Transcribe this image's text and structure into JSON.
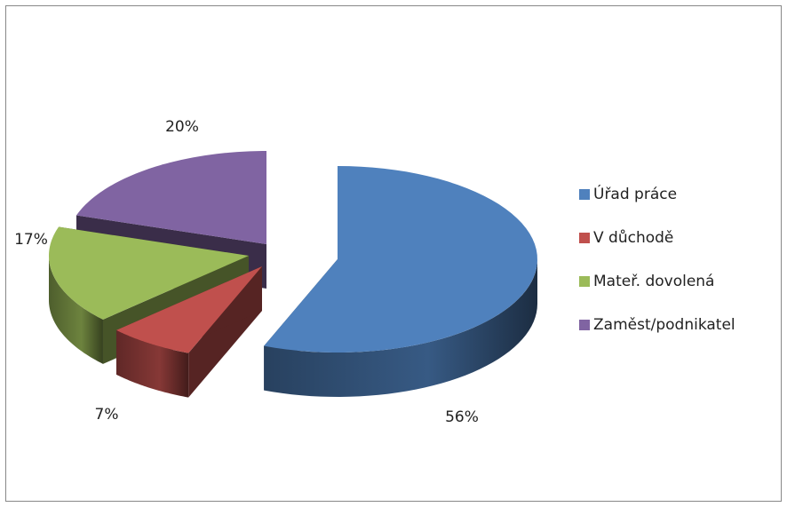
{
  "chart_data": {
    "type": "pie",
    "categories": [
      "Úřad práce",
      "V důchodě",
      "Mateř. dovolená",
      "Zaměst/podnikatel"
    ],
    "values": [
      56,
      7,
      17,
      20
    ],
    "value_labels": [
      "56%",
      "7%",
      "17%",
      "20%"
    ],
    "colors": [
      "#4f81bd",
      "#c0504d",
      "#9bbb59",
      "#8064a2"
    ],
    "legend": "right"
  }
}
